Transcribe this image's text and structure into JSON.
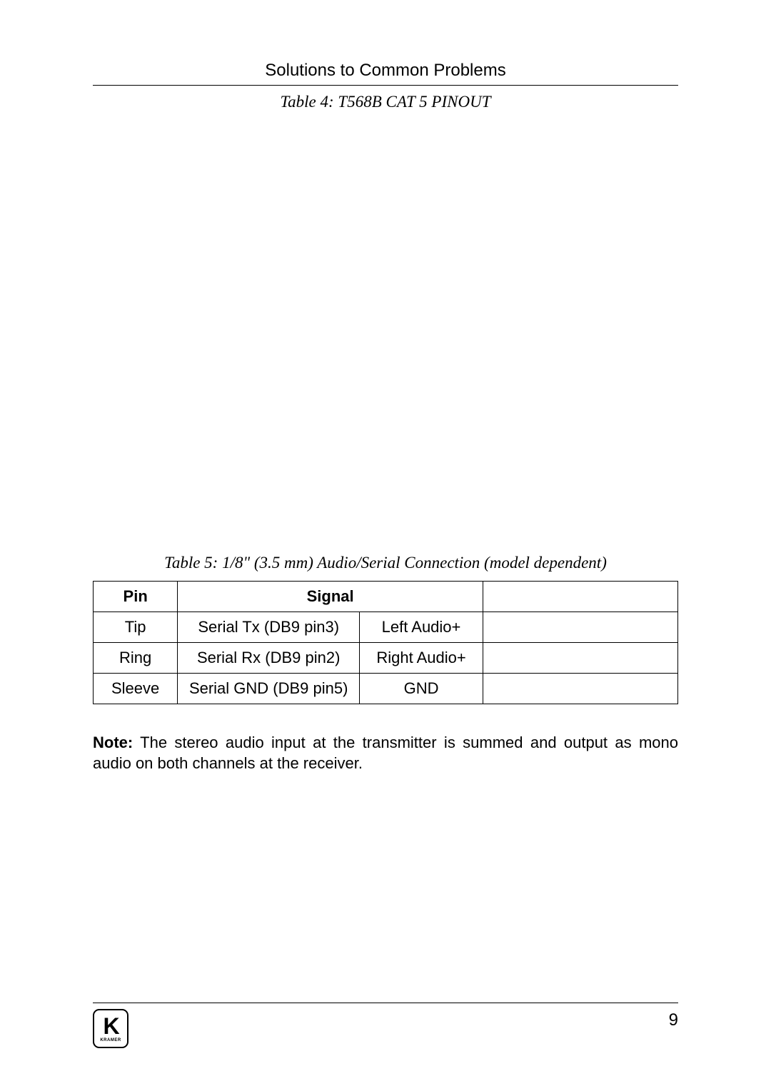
{
  "header": {
    "section_title": "Solutions to Common Problems"
  },
  "table4": {
    "caption": "Table 4: T568B CAT 5 PINOUT"
  },
  "table5": {
    "caption": "Table 5: 1/8\" (3.5 mm) Audio/Serial Connection (model dependent)",
    "columns": {
      "pin": "Pin",
      "signal": "Signal"
    },
    "rows": [
      {
        "pin": "Tip",
        "signal_a": "Serial Tx (DB9 pin3)",
        "signal_b": "Left Audio+",
        "blank": ""
      },
      {
        "pin": "Ring",
        "signal_a": "Serial Rx (DB9 pin2)",
        "signal_b": "Right Audio+",
        "blank": ""
      },
      {
        "pin": "Sleeve",
        "signal_a": "Serial GND (DB9 pin5)",
        "signal_b": "GND",
        "blank": ""
      }
    ]
  },
  "note": {
    "label": "Note:",
    "text": " The stereo audio input at the transmitter is summed and output as mono audio on both channels at the receiver."
  },
  "footer": {
    "logo_letter": "K",
    "logo_brand": "KRAMER",
    "page_number": "9"
  },
  "styles": {
    "background_color": "#ffffff",
    "text_color": "#000000",
    "border_color": "#000000",
    "body_fontsize": 22,
    "caption_fontsize": 23,
    "header_fontsize": 24
  }
}
